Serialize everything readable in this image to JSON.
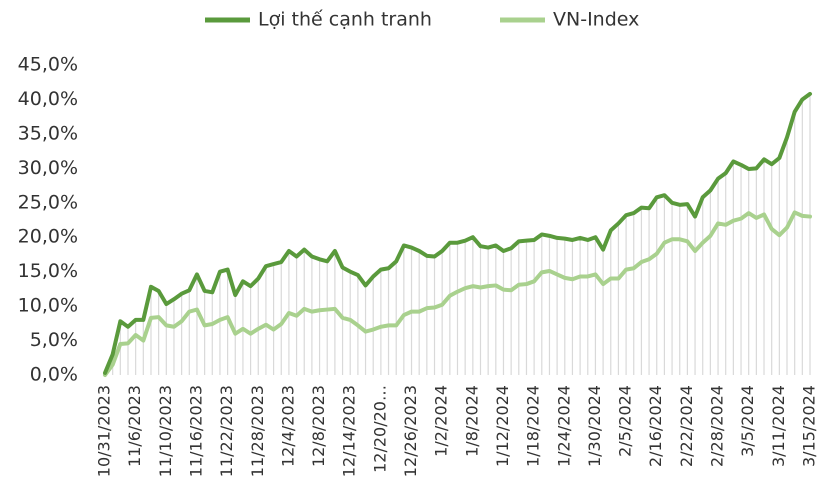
{
  "chart_data": {
    "type": "line",
    "categories": [
      "10/31/2023",
      null,
      null,
      null,
      "11/6/2023",
      null,
      null,
      null,
      "11/10/2023",
      null,
      null,
      null,
      "11/16/2023",
      null,
      null,
      null,
      "11/22/2023",
      null,
      null,
      null,
      "11/28/2023",
      null,
      null,
      null,
      "12/4/2023",
      null,
      null,
      null,
      "12/8/2023",
      null,
      null,
      null,
      "12/14/2023",
      null,
      null,
      null,
      "12/20/20…",
      null,
      null,
      null,
      "12/26/2023",
      null,
      null,
      null,
      "1/2/2024",
      null,
      null,
      null,
      "1/8/2024",
      null,
      null,
      null,
      "1/12/2024",
      null,
      null,
      null,
      "1/18/2024",
      null,
      null,
      null,
      "1/24/2024",
      null,
      null,
      null,
      "1/30/2024",
      null,
      null,
      null,
      "2/5/2024",
      null,
      null,
      null,
      "2/16/2024",
      null,
      null,
      null,
      "2/22/2024",
      null,
      null,
      null,
      "2/28/2024",
      null,
      null,
      null,
      "3/5/2024",
      null,
      null,
      null,
      "3/11/2024",
      null,
      null,
      null,
      "3/15/2024"
    ],
    "series": [
      {
        "name": "Lợi thế cạnh tranh",
        "color": "#5a9a3c",
        "values": [
          0.3,
          3,
          7.8,
          7,
          8,
          8,
          12.8,
          12.2,
          10.3,
          11,
          11.8,
          12.3,
          14.6,
          12.2,
          12,
          15,
          15.3,
          11.6,
          13.6,
          12.9,
          14,
          15.8,
          16.1,
          16.4,
          18,
          17.2,
          18.2,
          17.2,
          16.8,
          16.5,
          18,
          15.6,
          15,
          14.5,
          13,
          14.3,
          15.3,
          15.5,
          16.5,
          18.8,
          18.5,
          18,
          17.3,
          17.2,
          18,
          19.2,
          19.2,
          19.5,
          20,
          18.7,
          18.5,
          18.8,
          18,
          18.4,
          19.4,
          19.5,
          19.6,
          20.4,
          20.2,
          19.9,
          19.8,
          19.6,
          19.9,
          19.6,
          20,
          18.2,
          21,
          22,
          23.2,
          23.5,
          24.3,
          24.2,
          25.8,
          26.1,
          25,
          24.7,
          24.8,
          23,
          25.8,
          26.8,
          28.5,
          29.3,
          31,
          30.5,
          29.9,
          30,
          31.3,
          30.6,
          31.5,
          34.5,
          38.2,
          40,
          40.8
        ]
      },
      {
        "name": "VN-Index",
        "color": "#a9d18e",
        "values": [
          0,
          1.5,
          4.5,
          4.6,
          5.8,
          5,
          8.3,
          8.4,
          7.2,
          7,
          7.8,
          9.2,
          9.5,
          7.2,
          7.4,
          8,
          8.4,
          6,
          6.7,
          6,
          6.7,
          7.3,
          6.6,
          7.4,
          9,
          8.6,
          9.6,
          9.2,
          9.4,
          9.5,
          9.6,
          8.3,
          8,
          7.2,
          6.3,
          6.6,
          7,
          7.2,
          7.2,
          8.7,
          9.2,
          9.2,
          9.7,
          9.8,
          10.2,
          11.5,
          12.1,
          12.6,
          12.9,
          12.7,
          12.9,
          13,
          12.4,
          12.3,
          13.1,
          13.2,
          13.6,
          14.9,
          15.1,
          14.6,
          14.1,
          13.9,
          14.3,
          14.3,
          14.6,
          13.2,
          14,
          14,
          15.3,
          15.5,
          16.4,
          16.8,
          17.6,
          19.2,
          19.7,
          19.7,
          19.4,
          18,
          19.2,
          20.2,
          22,
          21.8,
          22.4,
          22.7,
          23.5,
          22.8,
          23.3,
          21.2,
          20.3,
          21.4,
          23.6,
          23.1,
          23
        ]
      }
    ],
    "ylim": [
      0,
      45
    ],
    "yticks": [
      {
        "value": 0,
        "label": "0,0%"
      },
      {
        "value": 5,
        "label": "5,0%"
      },
      {
        "value": 10,
        "label": "10,0%"
      },
      {
        "value": 15,
        "label": "15,0%"
      },
      {
        "value": 20,
        "label": "20,0%"
      },
      {
        "value": 25,
        "label": "25,0%"
      },
      {
        "value": 30,
        "label": "30,0%"
      },
      {
        "value": 35,
        "label": "35,0%"
      },
      {
        "value": 40,
        "label": "40,0%"
      },
      {
        "value": 45,
        "label": "45,0%"
      }
    ],
    "legend": "top"
  }
}
